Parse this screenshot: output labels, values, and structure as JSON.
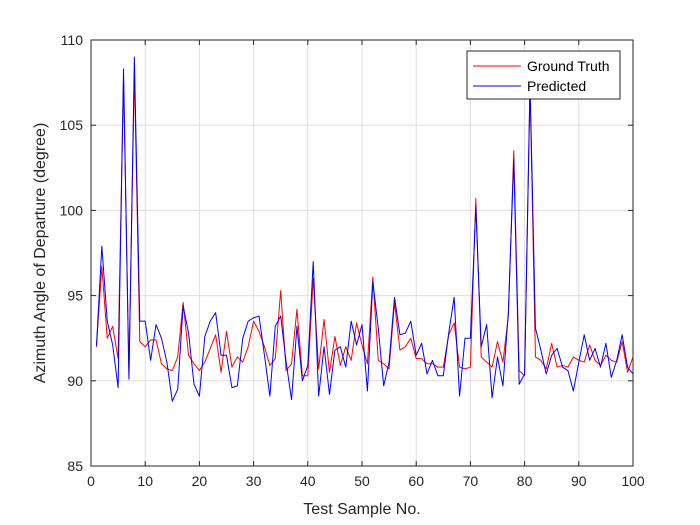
{
  "chart_data": {
    "type": "line",
    "title": "",
    "xlabel": "Test Sample No.",
    "ylabel": "Azimuth Angle of Departure (degree)",
    "xlim": [
      0,
      100
    ],
    "ylim": [
      85,
      110
    ],
    "xticks": [
      0,
      10,
      20,
      30,
      40,
      50,
      60,
      70,
      80,
      90,
      100
    ],
    "yticks": [
      85,
      90,
      95,
      100,
      105,
      110
    ],
    "grid": true,
    "legend_position": "top-right",
    "x": [
      1,
      2,
      3,
      4,
      5,
      6,
      7,
      8,
      9,
      10,
      11,
      12,
      13,
      14,
      15,
      16,
      17,
      18,
      19,
      20,
      21,
      22,
      23,
      24,
      25,
      26,
      27,
      28,
      29,
      30,
      31,
      32,
      33,
      34,
      35,
      36,
      37,
      38,
      39,
      40,
      41,
      42,
      43,
      44,
      45,
      46,
      47,
      48,
      49,
      50,
      51,
      52,
      53,
      54,
      55,
      56,
      57,
      58,
      59,
      60,
      61,
      62,
      63,
      64,
      65,
      66,
      67,
      68,
      69,
      70,
      71,
      72,
      73,
      74,
      75,
      76,
      77,
      78,
      79,
      80,
      81,
      82,
      83,
      84,
      85,
      86,
      87,
      88,
      89,
      90,
      91,
      92,
      93,
      94,
      95,
      96,
      97,
      98,
      99,
      100
    ],
    "series": [
      {
        "name": "Ground Truth",
        "color": "#ff0000",
        "values": [
          92.0,
          96.7,
          92.5,
          93.2,
          91.3,
          107.8,
          90.4,
          108.2,
          92.3,
          92.0,
          92.4,
          92.4,
          91.0,
          90.7,
          90.6,
          91.4,
          94.6,
          91.5,
          91.0,
          90.6,
          91.1,
          91.9,
          92.7,
          90.5,
          92.9,
          90.8,
          91.4,
          91.1,
          92.0,
          93.5,
          92.9,
          92.0,
          90.9,
          91.3,
          95.3,
          90.6,
          91.0,
          94.2,
          90.3,
          90.3,
          96.0,
          90.7,
          93.6,
          90.5,
          92.6,
          90.9,
          92.0,
          91.2,
          93.4,
          92.1,
          91.0,
          96.1,
          91.2,
          91.0,
          90.7,
          94.6,
          91.8,
          92.0,
          92.5,
          91.3,
          91.3,
          91.0,
          91.0,
          90.8,
          90.8,
          92.7,
          93.4,
          90.8,
          90.7,
          90.8,
          100.7,
          91.4,
          91.1,
          90.8,
          92.3,
          91.1,
          93.8,
          103.5,
          90.6,
          90.3,
          107.3,
          91.4,
          91.2,
          90.7,
          92.2,
          90.8,
          90.9,
          90.8,
          91.4,
          91.2,
          91.1,
          92.1,
          91.2,
          90.9,
          91.5,
          91.2,
          91.1,
          92.3,
          90.5,
          91.4
        ]
      },
      {
        "name": "Predicted",
        "color": "#0000ff",
        "values": [
          92.0,
          97.9,
          93.5,
          92.1,
          89.6,
          108.3,
          90.1,
          109.0,
          93.5,
          93.5,
          91.2,
          93.3,
          92.5,
          91.1,
          88.8,
          89.5,
          94.4,
          92.8,
          89.8,
          89.1,
          92.6,
          93.5,
          94.0,
          91.5,
          91.5,
          89.6,
          89.7,
          92.5,
          93.5,
          93.7,
          93.8,
          91.5,
          89.1,
          93.2,
          93.8,
          91.1,
          88.9,
          93.2,
          90.0,
          90.9,
          97.0,
          89.1,
          92.0,
          89.2,
          91.8,
          92.0,
          90.8,
          93.5,
          92.1,
          93.3,
          89.4,
          95.8,
          93.1,
          89.7,
          91.1,
          94.9,
          92.7,
          92.8,
          93.5,
          91.5,
          92.2,
          90.4,
          91.2,
          90.3,
          90.3,
          92.8,
          94.9,
          89.1,
          92.5,
          92.5,
          100.2,
          92.0,
          93.3,
          89.0,
          91.4,
          89.7,
          94.0,
          103.0,
          89.8,
          90.4,
          107.5,
          93.1,
          91.8,
          90.4,
          91.5,
          91.9,
          90.8,
          90.6,
          89.4,
          91.1,
          92.7,
          91.2,
          91.9,
          90.8,
          92.2,
          90.2,
          91.2,
          92.7,
          90.8,
          90.4
        ]
      }
    ]
  }
}
